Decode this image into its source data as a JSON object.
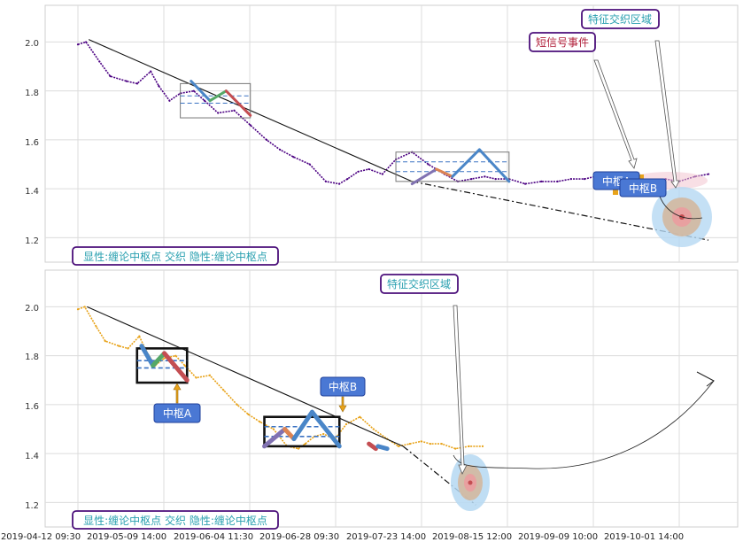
{
  "chart_data": [
    {
      "type": "line",
      "panel": "top",
      "y_ticks": [
        "2.0",
        "1.8",
        "1.6",
        "1.4",
        "1.2"
      ],
      "y_tick_values": [
        2.0,
        1.8,
        1.6,
        1.4,
        1.2
      ],
      "ylim": [
        1.1,
        2.15
      ],
      "grid": true,
      "price_color": "#4b0082",
      "series": [
        {
          "x": [
            0,
            3,
            8,
            12,
            18,
            22,
            27,
            30,
            34,
            38,
            43,
            47,
            52,
            58,
            64,
            70,
            75,
            80,
            86,
            92,
            97,
            100,
            104,
            108,
            113,
            118,
            124,
            130,
            136,
            141,
            146,
            151,
            155,
            160,
            166,
            172,
            178,
            183,
            188,
            192,
            198,
            203,
            207,
            212,
            218,
            223,
            229,
            234
          ],
          "values": [
            1.99,
            2.0,
            1.92,
            1.86,
            1.84,
            1.83,
            1.88,
            1.82,
            1.76,
            1.79,
            1.8,
            1.76,
            1.71,
            1.72,
            1.66,
            1.6,
            1.56,
            1.53,
            1.5,
            1.43,
            1.42,
            1.44,
            1.47,
            1.48,
            1.46,
            1.52,
            1.55,
            1.5,
            1.46,
            1.43,
            1.44,
            1.45,
            1.44,
            1.44,
            1.42,
            1.43,
            1.43,
            1.44,
            1.44,
            1.45,
            1.46,
            1.45,
            1.44,
            1.43,
            1.44,
            1.43,
            1.45,
            1.46
          ]
        }
      ],
      "trend_lines": [
        {
          "x": [
            4,
            124
          ],
          "values": [
            2.01,
            1.43
          ]
        },
        {
          "x": [
            124,
            234
          ],
          "values": [
            1.43,
            1.19
          ]
        }
      ],
      "zhongshu": [
        {
          "name": "中枢A",
          "x": [
            38,
            64
          ],
          "high": 1.83,
          "low": 1.69,
          "mid_high": 1.78,
          "mid_low": 1.75
        },
        {
          "name": "中枢B",
          "x": [
            118,
            160
          ],
          "high": 1.55,
          "low": 1.43,
          "mid_high": 1.51,
          "mid_low": 1.47
        }
      ],
      "strokes": [
        {
          "color": "#4a86c8",
          "x": [
            42,
            49
          ],
          "values": [
            1.84,
            1.76
          ]
        },
        {
          "color": "#55a868",
          "x": [
            49,
            55
          ],
          "values": [
            1.76,
            1.8
          ]
        },
        {
          "color": "#c44e52",
          "x": [
            55,
            64
          ],
          "values": [
            1.8,
            1.7
          ]
        },
        {
          "color": "#8172b2",
          "x": [
            124,
            133
          ],
          "values": [
            1.42,
            1.48
          ]
        },
        {
          "color": "#dd8452",
          "x": [
            133,
            139
          ],
          "values": [
            1.48,
            1.45
          ]
        },
        {
          "color": "#4a86c8",
          "x": [
            139,
            149
          ],
          "values": [
            1.45,
            1.56
          ]
        },
        {
          "color": "#4a86c8",
          "x": [
            149,
            160
          ],
          "values": [
            1.56,
            1.43
          ]
        }
      ],
      "labels": {
        "zhongshu_a": "中枢A",
        "zhongshu_b": "中枢B",
        "feature_zone": "特征交织区域",
        "short_signal": "短信号事件",
        "legend": "显性:缠论中枢点 交织 隐性:缠论中枢点"
      }
    },
    {
      "type": "line",
      "panel": "bottom",
      "y_ticks": [
        "2.0",
        "1.8",
        "1.6",
        "1.4",
        "1.2"
      ],
      "y_tick_values": [
        2.0,
        1.8,
        1.6,
        1.4,
        1.2
      ],
      "ylim": [
        1.1,
        2.15
      ],
      "grid": true,
      "price_color": "#e8a31a",
      "series": [
        {
          "x": [
            0,
            3,
            8,
            12,
            18,
            22,
            27,
            30,
            34,
            38,
            43,
            47,
            52,
            58,
            64,
            70,
            75,
            80,
            86,
            92,
            97,
            100,
            104,
            108,
            113,
            118,
            124,
            130,
            136,
            141,
            146,
            151,
            155,
            160,
            166,
            172,
            178
          ],
          "values": [
            1.99,
            2.0,
            1.92,
            1.86,
            1.84,
            1.83,
            1.88,
            1.82,
            1.76,
            1.79,
            1.8,
            1.76,
            1.71,
            1.72,
            1.66,
            1.6,
            1.56,
            1.53,
            1.5,
            1.43,
            1.42,
            1.44,
            1.47,
            1.48,
            1.46,
            1.52,
            1.55,
            1.5,
            1.46,
            1.43,
            1.44,
            1.45,
            1.44,
            1.44,
            1.42,
            1.43,
            1.43
          ]
        }
      ],
      "trend_lines": [
        {
          "x": [
            4,
            143
          ],
          "values": [
            2.0,
            1.43
          ]
        },
        {
          "x": [
            143,
            175
          ],
          "values": [
            1.43,
            1.19
          ]
        }
      ],
      "zhongshu": [
        {
          "name": "中枢A",
          "x": [
            26,
            48
          ],
          "high": 1.83,
          "low": 1.69,
          "mid_high": 1.78,
          "mid_low": 1.75
        },
        {
          "name": "中枢B",
          "x": [
            82,
            115
          ],
          "high": 1.55,
          "low": 1.43,
          "mid_high": 1.51,
          "mid_low": 1.47
        }
      ],
      "strokes": [
        {
          "color": "#4a86c8",
          "x": [
            28,
            33
          ],
          "values": [
            1.84,
            1.76
          ]
        },
        {
          "color": "#55a868",
          "x": [
            33,
            38
          ],
          "values": [
            1.76,
            1.81
          ]
        },
        {
          "color": "#c44e52",
          "x": [
            38,
            48
          ],
          "values": [
            1.81,
            1.7
          ]
        },
        {
          "color": "#8172b2",
          "x": [
            82,
            91
          ],
          "values": [
            1.43,
            1.5
          ]
        },
        {
          "color": "#dd8452",
          "x": [
            91,
            95
          ],
          "values": [
            1.5,
            1.46
          ]
        },
        {
          "color": "#4a86c8",
          "x": [
            95,
            103
          ],
          "values": [
            1.46,
            1.57
          ]
        },
        {
          "color": "#4a86c8",
          "x": [
            103,
            115
          ],
          "values": [
            1.57,
            1.43
          ]
        },
        {
          "color": "#c44e52",
          "x": [
            128,
            131
          ],
          "values": [
            1.44,
            1.42
          ]
        },
        {
          "color": "#4a86c8",
          "x": [
            132,
            136
          ],
          "values": [
            1.43,
            1.42
          ]
        }
      ],
      "labels": {
        "zhongshu_a": "中枢A",
        "zhongshu_b": "中枢B",
        "feature_zone": "特征交织区域",
        "legend": "显性:缠论中枢点 交织 隐性:缠论中枢点"
      }
    }
  ],
  "x_axis": {
    "tick_labels": [
      "2019-04-12 09:30",
      "2019-05-09 14:00",
      "2019-06-04 11:30",
      "2019-06-28 09:30",
      "2019-07-23 14:00",
      "2019-08-15 12:00",
      "2019-09-09 10:00",
      "2019-10-01 14:00"
    ]
  },
  "colors": {
    "label_box_fill": "#4a78d4",
    "label_box_border": "#1f3f9a",
    "callout_border": "#4b0f7a",
    "callout_text": "#2aa0b0",
    "short_signal_text": "#b0203a",
    "legend_text": "#2aa0b0"
  }
}
